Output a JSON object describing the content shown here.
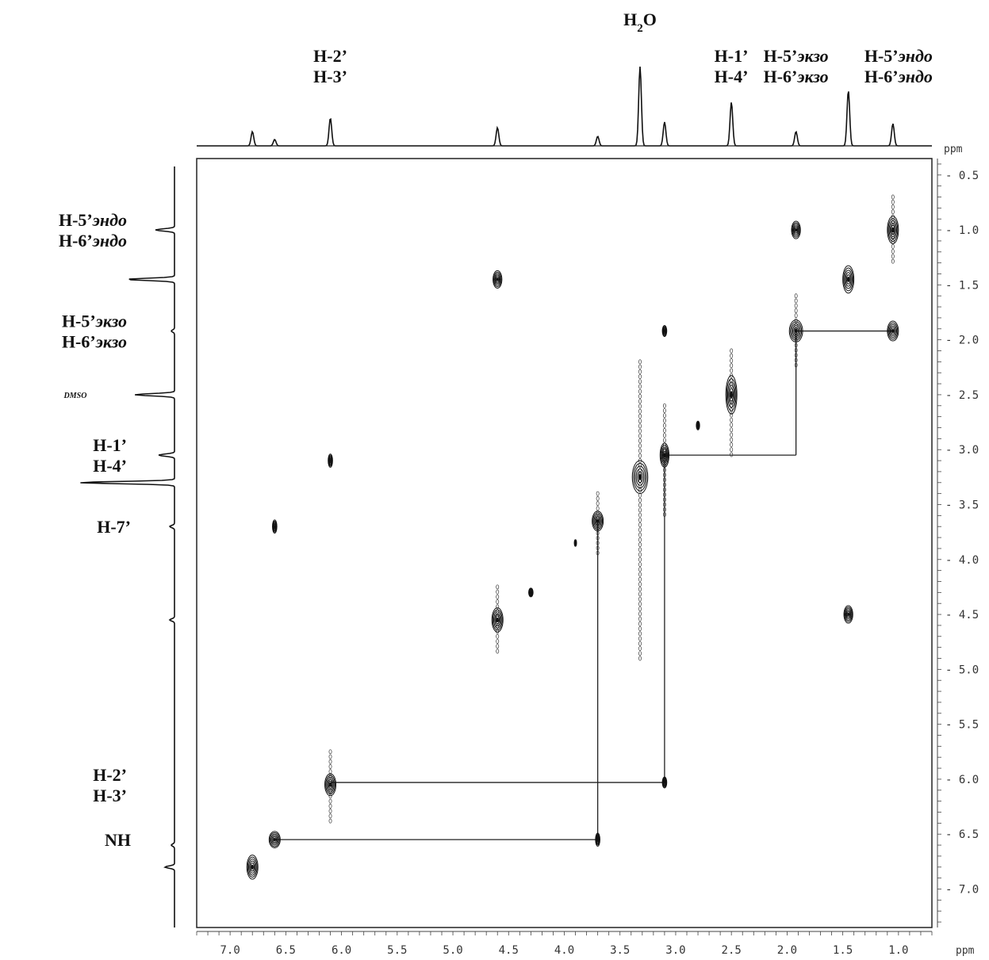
{
  "chart_data": {
    "type": "2D NMR COSY contour plot",
    "x_unit": "ppm",
    "y_unit": "ppm",
    "xlim": [
      7.3,
      0.7
    ],
    "ylim": [
      0.35,
      7.35
    ],
    "x_ticks": [
      "7.0",
      "6.5",
      "6.0",
      "5.5",
      "5.0",
      "4.5",
      "4.0",
      "3.5",
      "3.0",
      "2.5",
      "2.0",
      "1.5",
      "1.0"
    ],
    "x_tick_values": [
      7.0,
      6.5,
      6.0,
      5.5,
      5.0,
      4.5,
      4.0,
      3.5,
      3.0,
      2.5,
      2.0,
      1.5,
      1.0
    ],
    "y_ticks": [
      "0.5",
      "1.0",
      "1.5",
      "2.0",
      "2.5",
      "3.0",
      "3.5",
      "4.0",
      "4.5",
      "5.0",
      "5.5",
      "6.0",
      "6.5",
      "7.0"
    ],
    "y_tick_values": [
      0.5,
      1.0,
      1.5,
      2.0,
      2.5,
      3.0,
      3.5,
      4.0,
      4.5,
      5.0,
      5.5,
      6.0,
      6.5,
      7.0
    ],
    "top_spectrum_peaks": [
      {
        "ppm": 6.8,
        "h": 0.18
      },
      {
        "ppm": 6.6,
        "h": 0.08
      },
      {
        "ppm": 6.1,
        "h": 0.35
      },
      {
        "ppm": 4.6,
        "h": 0.23
      },
      {
        "ppm": 3.7,
        "h": 0.12
      },
      {
        "ppm": 3.32,
        "h": 1.0
      },
      {
        "ppm": 3.1,
        "h": 0.3
      },
      {
        "ppm": 2.5,
        "h": 0.55
      },
      {
        "ppm": 1.92,
        "h": 0.18
      },
      {
        "ppm": 1.45,
        "h": 0.7
      },
      {
        "ppm": 1.05,
        "h": 0.28
      }
    ],
    "top_labels": [
      {
        "lines": [
          {
            "parts": [
              {
                "t": "H",
                "it": false
              },
              {
                "t": "2",
                "it": false,
                "sub": true
              },
              {
                "t": "O",
                "it": false
              }
            ]
          }
        ],
        "ppm": 3.32
      },
      {
        "lines": [
          {
            "parts": [
              {
                "t": "H-2’",
                "it": false
              }
            ]
          },
          {
            "parts": [
              {
                "t": "H-3’",
                "it": false
              }
            ]
          }
        ],
        "ppm": 6.1
      },
      {
        "lines": [
          {
            "parts": [
              {
                "t": "H-1’",
                "it": false
              }
            ]
          },
          {
            "parts": [
              {
                "t": "H-4’",
                "it": false
              }
            ]
          }
        ],
        "ppm": 2.75
      },
      {
        "lines": [
          {
            "parts": [
              {
                "t": "H-5’",
                "it": false
              },
              {
                "t": "экзо",
                "it": true
              }
            ]
          },
          {
            "parts": [
              {
                "t": "H-6’",
                "it": false
              },
              {
                "t": "экзо",
                "it": true
              }
            ]
          }
        ],
        "ppm": 1.92
      },
      {
        "lines": [
          {
            "parts": [
              {
                "t": "H-5’",
                "it": false
              },
              {
                "t": "эндо",
                "it": true
              }
            ]
          },
          {
            "parts": [
              {
                "t": "H-6’",
                "it": false
              },
              {
                "t": "эндо",
                "it": true
              }
            ]
          }
        ],
        "ppm": 1.0
      }
    ],
    "left_spectrum_peaks": [
      {
        "ppm": 1.0,
        "h": 0.12
      },
      {
        "ppm": 1.45,
        "h": 0.3
      },
      {
        "ppm": 1.92,
        "h": 0.02
      },
      {
        "ppm": 2.5,
        "h": 0.25
      },
      {
        "ppm": 3.05,
        "h": 0.1
      },
      {
        "ppm": 3.3,
        "h": 0.6
      },
      {
        "ppm": 3.7,
        "h": 0.03
      },
      {
        "ppm": 4.55,
        "h": 0.03
      },
      {
        "ppm": 6.6,
        "h": 0.02
      },
      {
        "ppm": 6.8,
        "h": 0.06
      }
    ],
    "left_labels": [
      {
        "lines": [
          {
            "parts": [
              {
                "t": "H-5’",
                "it": false
              },
              {
                "t": "эндо",
                "it": true
              }
            ]
          },
          {
            "parts": [
              {
                "t": "H-6’",
                "it": false
              },
              {
                "t": "эндо",
                "it": true
              }
            ]
          }
        ],
        "ppm": 1.0
      },
      {
        "lines": [
          {
            "parts": [
              {
                "t": "H-5’",
                "it": false
              },
              {
                "t": "экзо",
                "it": true
              }
            ]
          },
          {
            "parts": [
              {
                "t": "H-6’",
                "it": false
              },
              {
                "t": "экзо",
                "it": true
              }
            ]
          }
        ],
        "ppm": 1.92
      },
      {
        "lines": [
          {
            "parts": [
              {
                "t": "DMSO",
                "it": true,
                "small": true
              }
            ]
          }
        ],
        "ppm": 2.5
      },
      {
        "lines": [
          {
            "parts": [
              {
                "t": "H-1’",
                "it": false
              }
            ]
          },
          {
            "parts": [
              {
                "t": "H-4’",
                "it": false
              }
            ]
          }
        ],
        "ppm": 3.05
      },
      {
        "lines": [
          {
            "parts": [
              {
                "t": "H-7’",
                "it": false
              }
            ]
          }
        ],
        "ppm": 3.7
      },
      {
        "lines": [
          {
            "parts": [
              {
                "t": "H-2’",
                "it": false
              }
            ]
          },
          {
            "parts": [
              {
                "t": "H-3’",
                "it": false
              }
            ]
          }
        ],
        "ppm": 6.05
      },
      {
        "lines": [
          {
            "parts": [
              {
                "t": "NH",
                "it": false
              }
            ]
          }
        ],
        "ppm": 6.55
      }
    ],
    "cross_peaks": [
      {
        "x": 1.05,
        "y": 1.0,
        "w": 0.1,
        "h": 0.25
      },
      {
        "x": 1.92,
        "y": 1.0,
        "w": 0.08,
        "h": 0.16
      },
      {
        "x": 1.45,
        "y": 1.45,
        "w": 0.1,
        "h": 0.25
      },
      {
        "x": 4.6,
        "y": 1.45,
        "w": 0.08,
        "h": 0.16
      },
      {
        "x": 1.92,
        "y": 1.92,
        "w": 0.12,
        "h": 0.2
      },
      {
        "x": 1.05,
        "y": 1.92,
        "w": 0.1,
        "h": 0.18
      },
      {
        "x": 3.1,
        "y": 1.92,
        "w": 0.04,
        "h": 0.1
      },
      {
        "x": 2.5,
        "y": 2.5,
        "w": 0.1,
        "h": 0.35
      },
      {
        "x": 2.8,
        "y": 2.78,
        "w": 0.03,
        "h": 0.08
      },
      {
        "x": 3.1,
        "y": 3.05,
        "w": 0.08,
        "h": 0.22
      },
      {
        "x": 3.32,
        "y": 3.25,
        "w": 0.14,
        "h": 0.3
      },
      {
        "x": 6.1,
        "y": 3.1,
        "w": 0.04,
        "h": 0.12
      },
      {
        "x": 3.7,
        "y": 3.65,
        "w": 0.1,
        "h": 0.18
      },
      {
        "x": 6.6,
        "y": 3.7,
        "w": 0.04,
        "h": 0.12
      },
      {
        "x": 3.9,
        "y": 3.85,
        "w": 0.02,
        "h": 0.06
      },
      {
        "x": 4.3,
        "y": 4.3,
        "w": 0.04,
        "h": 0.08
      },
      {
        "x": 4.6,
        "y": 4.55,
        "w": 0.1,
        "h": 0.22
      },
      {
        "x": 1.45,
        "y": 4.5,
        "w": 0.08,
        "h": 0.16
      },
      {
        "x": 6.1,
        "y": 6.05,
        "w": 0.1,
        "h": 0.2
      },
      {
        "x": 3.1,
        "y": 6.03,
        "w": 0.04,
        "h": 0.1
      },
      {
        "x": 3.7,
        "y": 6.55,
        "w": 0.04,
        "h": 0.12
      },
      {
        "x": 6.6,
        "y": 6.55,
        "w": 0.1,
        "h": 0.15
      },
      {
        "x": 6.8,
        "y": 6.8,
        "w": 0.1,
        "h": 0.22
      }
    ],
    "streaks": [
      {
        "x": 3.32,
        "y1": 2.2,
        "y2": 4.9
      },
      {
        "x": 3.1,
        "y1": 2.6,
        "y2": 3.6
      },
      {
        "x": 6.1,
        "y1": 5.75,
        "y2": 6.4
      },
      {
        "x": 2.5,
        "y1": 2.1,
        "y2": 3.05
      },
      {
        "x": 1.92,
        "y1": 1.6,
        "y2": 2.25
      },
      {
        "x": 1.05,
        "y1": 0.7,
        "y2": 1.3
      },
      {
        "x": 3.7,
        "y1": 3.4,
        "y2": 3.95
      },
      {
        "x": 4.6,
        "y1": 4.25,
        "y2": 4.85
      }
    ],
    "connectivity_lines": [
      {
        "from": [
          1.92,
          1.92
        ],
        "to": [
          1.05,
          1.92
        ]
      },
      {
        "from": [
          1.92,
          1.92
        ],
        "to": [
          1.92,
          3.05
        ]
      },
      {
        "from": [
          1.92,
          3.05
        ],
        "to": [
          3.1,
          3.05
        ]
      },
      {
        "from": [
          3.1,
          3.05
        ],
        "to": [
          3.1,
          6.03
        ]
      },
      {
        "from": [
          3.1,
          6.03
        ],
        "to": [
          6.1,
          6.03
        ]
      },
      {
        "from": [
          3.7,
          3.65
        ],
        "to": [
          3.7,
          6.55
        ]
      },
      {
        "from": [
          3.7,
          6.55
        ],
        "to": [
          6.6,
          6.55
        ]
      }
    ]
  }
}
